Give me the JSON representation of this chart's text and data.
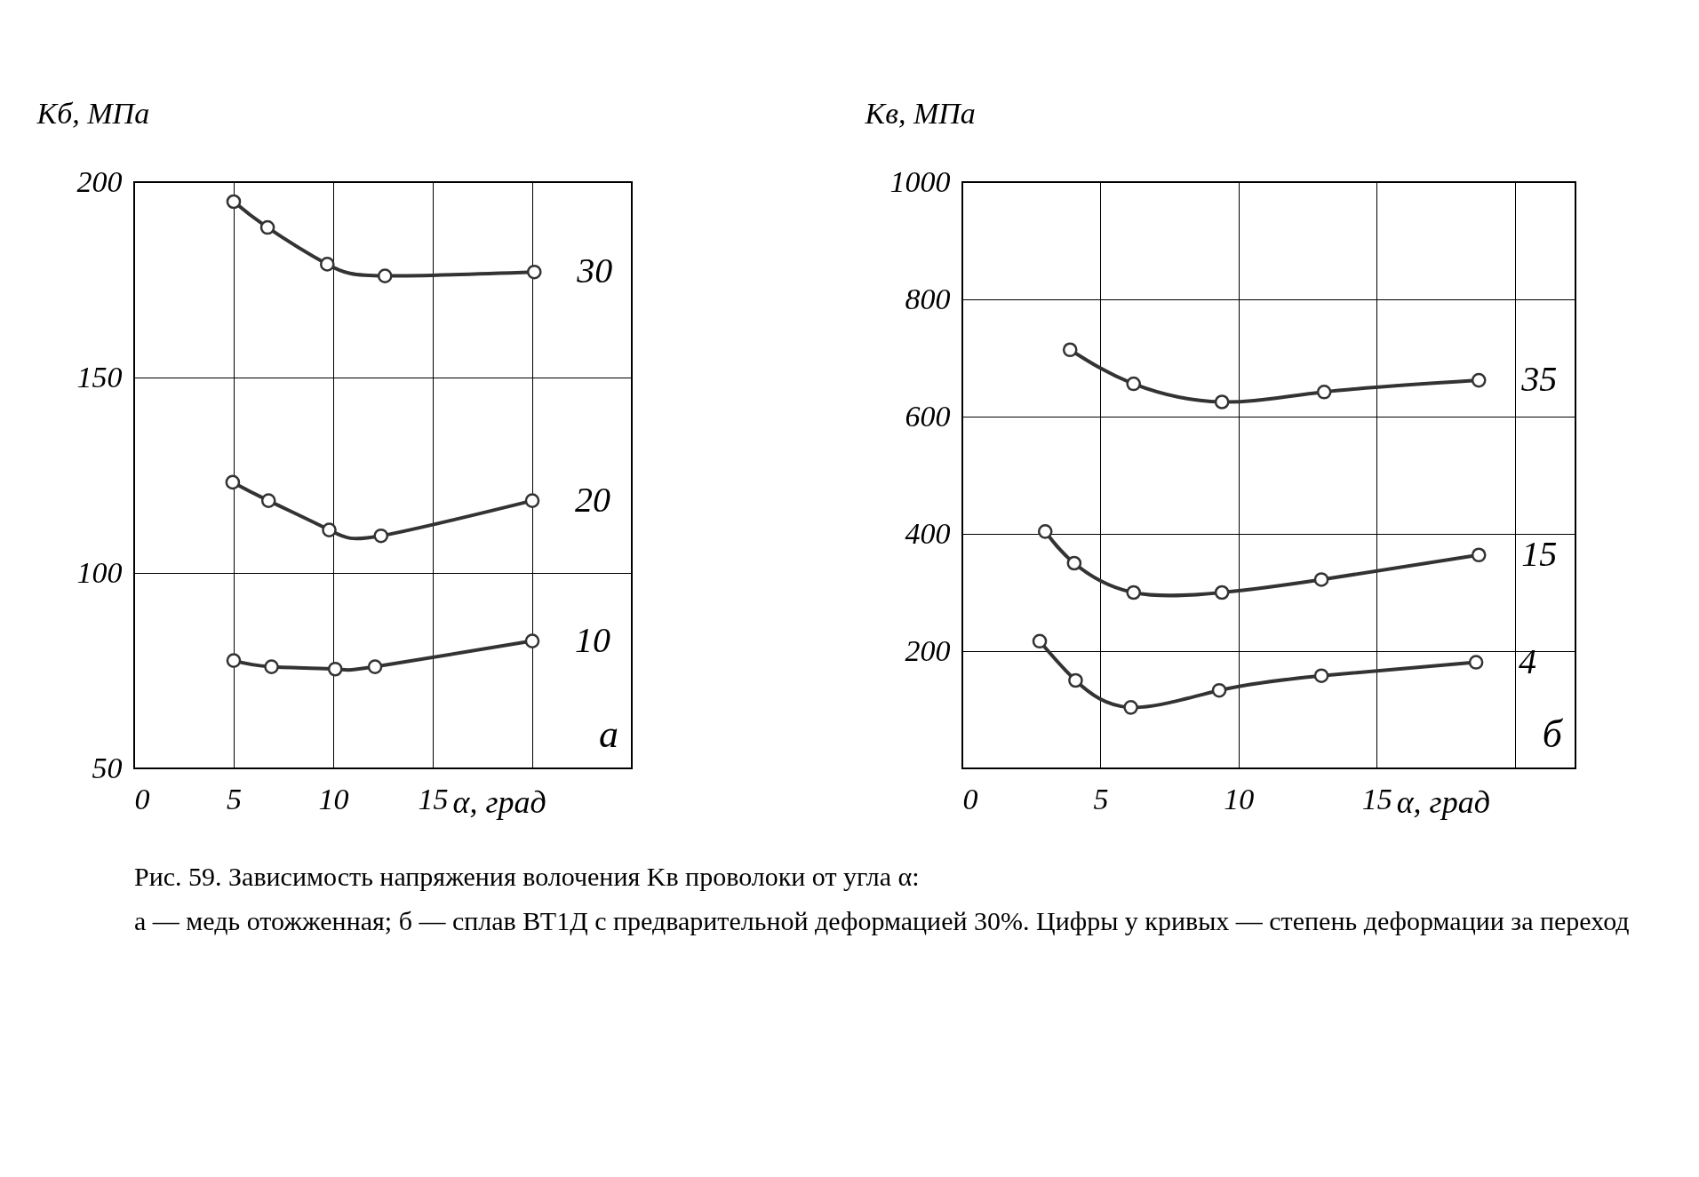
{
  "chart_data": [
    {
      "type": "line",
      "ylabel": "Kб, МПа",
      "xlabel": "α, град",
      "xlim": [
        0,
        25
      ],
      "xticks": [
        0,
        5,
        10,
        15,
        {
          "value": 20,
          "label": null
        }
      ],
      "ylim": [
        50,
        200
      ],
      "yticks": [
        50,
        100,
        150,
        200
      ],
      "grid": true,
      "marker": "circle",
      "line_style": "solid",
      "series": [
        {
          "name": "30",
          "color": "#333333",
          "x": [
            5.0,
            6.7,
            9.7,
            12.6,
            20.1
          ],
          "values": [
            195,
            188.4,
            179,
            176,
            177
          ]
        },
        {
          "name": "20",
          "color": "#333333",
          "x": [
            4.95,
            6.75,
            9.8,
            12.4,
            20.0
          ],
          "values": [
            123.2,
            118.5,
            111,
            109.5,
            118.5
          ]
        },
        {
          "name": "10",
          "color": "#333333",
          "x": [
            5.0,
            6.9,
            10.1,
            12.1,
            20.0
          ],
          "values": [
            77.6,
            76,
            75.4,
            76,
            82.6
          ]
        }
      ],
      "annotations": [
        "а"
      ]
    },
    {
      "type": "line",
      "ylabel": "Kв, МПа",
      "xlabel": "α, град",
      "xlim": [
        0,
        22.2
      ],
      "xticks": [
        0,
        5,
        10,
        15,
        {
          "value": 20,
          "label": null
        }
      ],
      "ylim": [
        0,
        1000
      ],
      "yticks": [
        {
          "value": 0,
          "label": null
        },
        200,
        400,
        600,
        800,
        1000
      ],
      "grid": true,
      "marker": "circle",
      "line_style": "solid",
      "series": [
        {
          "name": "35",
          "color": "#333333",
          "x": [
            3.9,
            6.2,
            9.4,
            13.1,
            18.7
          ],
          "values": [
            714,
            656,
            625,
            642,
            662
          ]
        },
        {
          "name": "15",
          "color": "#333333",
          "x": [
            3.0,
            4.05,
            6.2,
            9.4,
            13.0,
            18.7
          ],
          "values": [
            404,
            350,
            300,
            300,
            322,
            364
          ]
        },
        {
          "name": "4",
          "color": "#333333",
          "x": [
            2.8,
            4.1,
            6.1,
            9.3,
            13.0,
            18.6
          ],
          "values": [
            217,
            150,
            104,
            133,
            158,
            181
          ]
        }
      ],
      "annotations": [
        "б"
      ]
    },
    {
      "type": "other",
      "annotations": [
        "Рис. 59. Зависимость напряжения волочения Kв проволоки от угла α:",
        "а — медь отожженная; б — сплав ВТ1Д с предварительной деформацией 30%. Цифры у кривых — степень деформации за переход"
      ]
    }
  ]
}
